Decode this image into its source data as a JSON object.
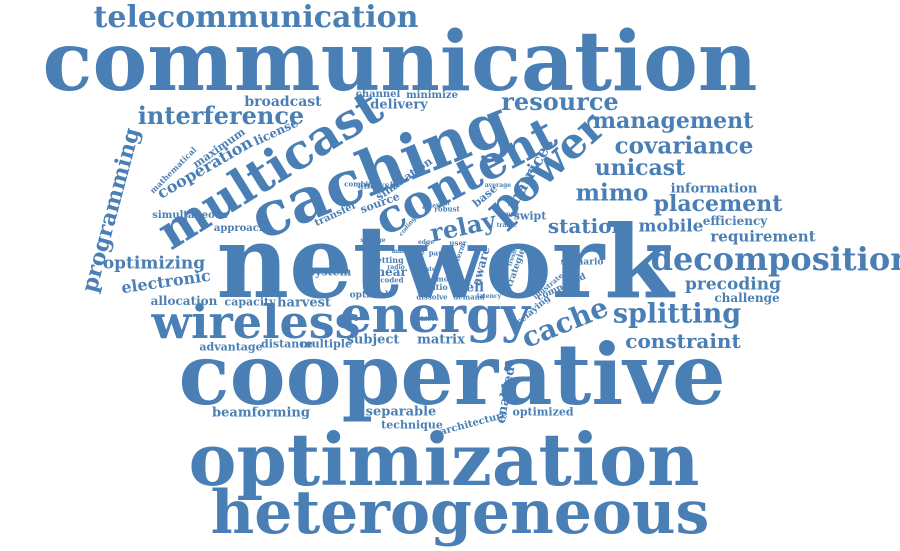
{
  "accent_color": "#4a7fb5",
  "background_color": "#ffffff",
  "words": [
    {
      "text": "communication"
    },
    {
      "text": "network"
    },
    {
      "text": "cooperative"
    },
    {
      "text": "optimization"
    },
    {
      "text": "heterogeneous"
    },
    {
      "text": "caching"
    },
    {
      "text": "multicast"
    },
    {
      "text": "energy"
    },
    {
      "text": "wireless"
    },
    {
      "text": "content"
    },
    {
      "text": "power"
    },
    {
      "text": "telecommunication"
    },
    {
      "text": "decomposition"
    },
    {
      "text": "resource"
    },
    {
      "text": "interference"
    },
    {
      "text": "cache"
    },
    {
      "text": "splitting"
    },
    {
      "text": "management"
    },
    {
      "text": "covariance"
    },
    {
      "text": "unicast"
    },
    {
      "text": "placement"
    },
    {
      "text": "mimo"
    },
    {
      "text": "programming"
    },
    {
      "text": "optimizing"
    },
    {
      "text": "electronic"
    },
    {
      "text": "relay"
    },
    {
      "text": "station"
    },
    {
      "text": "mobile"
    },
    {
      "text": "constraint"
    },
    {
      "text": "precoding"
    },
    {
      "text": "requirement"
    },
    {
      "text": "cooperation"
    },
    {
      "text": "broadcast"
    },
    {
      "text": "information"
    },
    {
      "text": "beamforming"
    },
    {
      "text": "harvest"
    },
    {
      "text": "subject"
    },
    {
      "text": "matrix"
    },
    {
      "text": "separable"
    },
    {
      "text": "enabled"
    },
    {
      "text": "allocation"
    },
    {
      "text": "capacity"
    },
    {
      "text": "efficiency"
    },
    {
      "text": "challenge"
    },
    {
      "text": "matrices"
    },
    {
      "text": "technique"
    },
    {
      "text": "optimized"
    },
    {
      "text": "architecture"
    },
    {
      "text": "delivery"
    },
    {
      "text": "channel"
    },
    {
      "text": "minimize"
    },
    {
      "text": "license"
    },
    {
      "text": "maximum"
    },
    {
      "text": "mathematical"
    },
    {
      "text": "simultaneous"
    },
    {
      "text": "approach"
    },
    {
      "text": "transfer"
    },
    {
      "text": "source"
    },
    {
      "text": "simulation"
    },
    {
      "text": "analysis"
    },
    {
      "text": "swipt"
    },
    {
      "text": "base"
    },
    {
      "text": "aware"
    },
    {
      "text": "cell"
    },
    {
      "text": "system"
    },
    {
      "text": "linear"
    },
    {
      "text": "optimal"
    },
    {
      "text": "advantage"
    },
    {
      "text": "distance"
    },
    {
      "text": "multiple"
    },
    {
      "text": "scenario"
    },
    {
      "text": "compound"
    },
    {
      "text": "combine"
    },
    {
      "text": "robust"
    },
    {
      "text": "setting"
    },
    {
      "text": "coded"
    },
    {
      "text": "ratio"
    },
    {
      "text": "term"
    },
    {
      "text": "mode"
    },
    {
      "text": "paper"
    },
    {
      "text": "mall"
    },
    {
      "text": "user"
    },
    {
      "text": "code"
    },
    {
      "text": "edge"
    },
    {
      "text": "demand"
    },
    {
      "text": "latency"
    },
    {
      "text": "strategies"
    },
    {
      "text": "relaying"
    },
    {
      "text": "illustrate"
    },
    {
      "text": "external"
    },
    {
      "text": "average"
    },
    {
      "text": "storage"
    },
    {
      "text": "traffic"
    },
    {
      "text": "finite"
    },
    {
      "text": "dissolve"
    },
    {
      "text": "achieve"
    },
    {
      "text": "coding"
    },
    {
      "text": "radio"
    },
    {
      "text": "rate"
    },
    {
      "text": "fresh"
    },
    {
      "text": "group"
    },
    {
      "text": "mail"
    }
  ]
}
